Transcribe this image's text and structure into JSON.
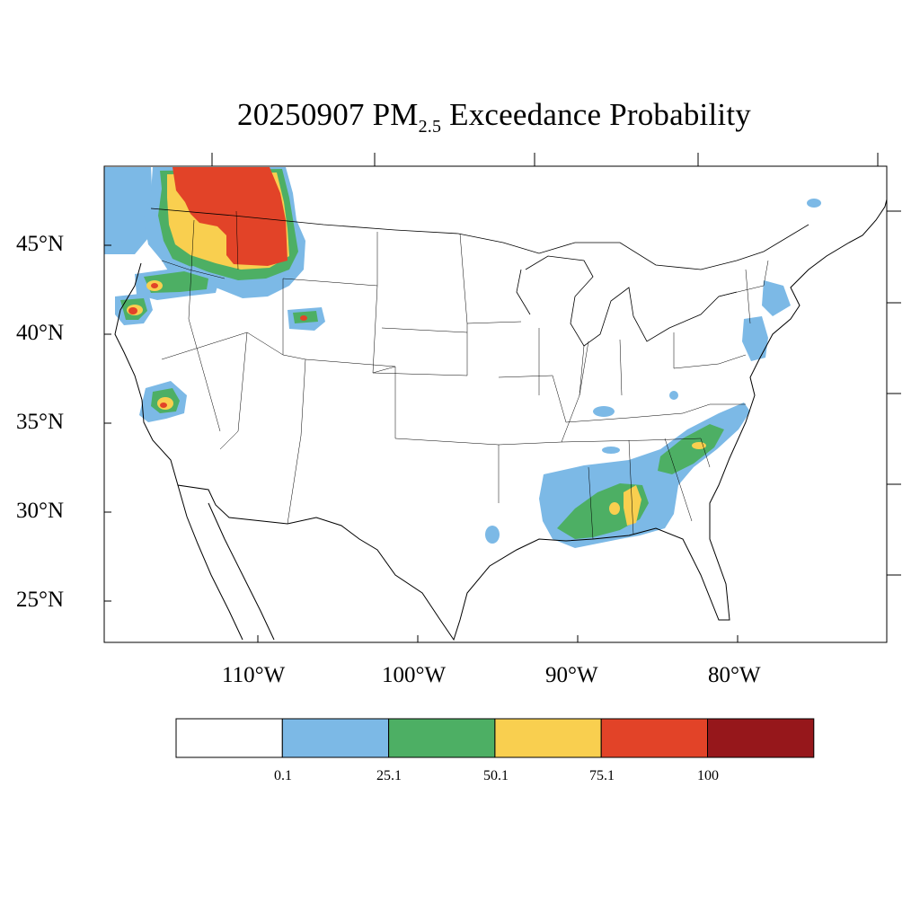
{
  "title": {
    "date": "20250907",
    "pm_prefix": "PM",
    "pm_sub": "2.5",
    "rest": "Exceedance Probability"
  },
  "axes": {
    "lat_labels": [
      "45°N",
      "40°N",
      "35°N",
      "30°N",
      "25°N"
    ],
    "lon_labels": [
      "110°W",
      "100°W",
      "90°W",
      "80°W"
    ]
  },
  "legend": {
    "colors": [
      "#ffffff",
      "#7cb9e6",
      "#4daf64",
      "#f9cf4f",
      "#e24328",
      "#96171b"
    ],
    "labels": [
      "0.1",
      "25.1",
      "50.1",
      "75.1",
      "100"
    ]
  },
  "map": {
    "region": "Contiguous United States",
    "colors": {
      "blue": "#7cb9e6",
      "green": "#4daf64",
      "yellow": "#f9cf4f",
      "red": "#e24328"
    }
  }
}
